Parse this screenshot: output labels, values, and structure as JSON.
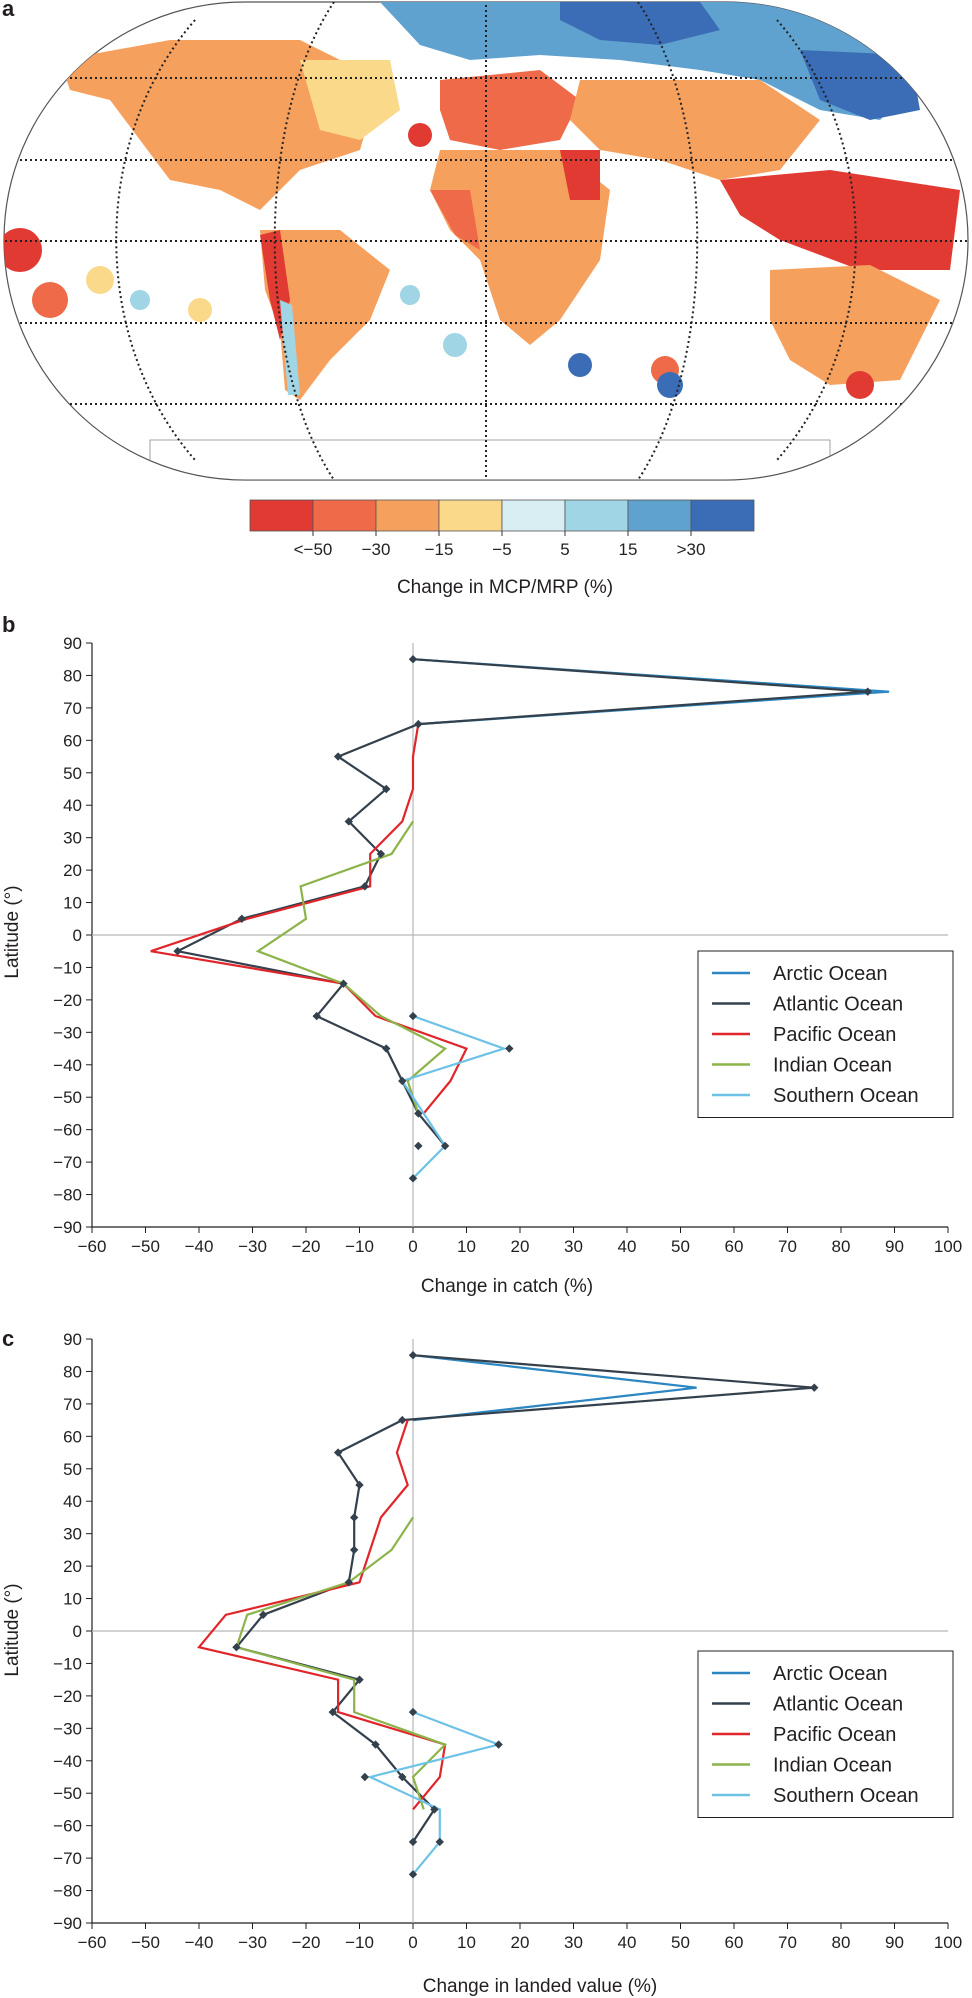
{
  "panels": {
    "a": {
      "label": "a"
    },
    "b": {
      "label": "b"
    },
    "c": {
      "label": "c"
    }
  },
  "colors": {
    "arctic": "#2b86c1",
    "atlantic": "#34414d",
    "pacific": "#e0262b",
    "indian": "#8cb44a",
    "southern": "#6dc2e6",
    "bins": [
      "#e03a33",
      "#ee6a48",
      "#f6a05e",
      "#fbd98a",
      "#d9eef3",
      "#9fd5e4",
      "#5fa2d0",
      "#3a6db5"
    ]
  },
  "map": {
    "colorbar_ticks": [
      "<−50",
      "−30",
      "−15",
      "−5",
      "5",
      "15",
      ">30"
    ],
    "colorbar_title": "Change in MCP/MRP (%)"
  },
  "chart_data": [
    {
      "type": "line",
      "panel": "b",
      "xlabel": "Change in catch (%)",
      "ylabel": "Latitude (°)",
      "xlim": [
        -60,
        100
      ],
      "ylim": [
        -90,
        90
      ],
      "xticks": [
        -60,
        -50,
        -40,
        -30,
        -20,
        -10,
        0,
        10,
        20,
        30,
        40,
        50,
        60,
        70,
        80,
        90,
        100
      ],
      "yticks": [
        90,
        80,
        70,
        60,
        50,
        40,
        30,
        20,
        10,
        0,
        -10,
        -20,
        -30,
        -40,
        -50,
        -60,
        -70,
        -80,
        -90
      ],
      "legend_position": "right",
      "series": [
        {
          "name": "Arctic Ocean",
          "key": "arctic",
          "marker": false,
          "points": [
            [
              0,
              85
            ],
            [
              89,
              75
            ],
            [
              1,
              65
            ]
          ]
        },
        {
          "name": "Atlantic Ocean",
          "key": "atlantic",
          "marker": true,
          "points": [
            [
              0,
              85
            ],
            [
              85,
              75
            ],
            [
              1,
              65
            ],
            [
              -14,
              55
            ],
            [
              -5,
              45
            ],
            [
              -12,
              35
            ],
            [
              -6,
              25
            ],
            [
              -9,
              15
            ],
            [
              -32,
              5
            ],
            [
              -44,
              -5
            ],
            [
              -13,
              -15
            ],
            [
              -18,
              -25
            ],
            [
              -5,
              -35
            ],
            [
              -2,
              -45
            ],
            [
              1,
              -55
            ],
            [
              6,
              -65
            ]
          ]
        },
        {
          "name": "Pacific Ocean",
          "key": "pacific",
          "marker": false,
          "points": [
            [
              1,
              65
            ],
            [
              0,
              55
            ],
            [
              0,
              45
            ],
            [
              -2,
              35
            ],
            [
              -8,
              25
            ],
            [
              -8,
              15
            ],
            [
              -31,
              5
            ],
            [
              -49,
              -5
            ],
            [
              -13,
              -15
            ],
            [
              -7,
              -25
            ],
            [
              10,
              -35
            ],
            [
              7,
              -45
            ],
            [
              2,
              -55
            ]
          ]
        },
        {
          "name": "Indian Ocean",
          "key": "indian",
          "marker": false,
          "points": [
            [
              0,
              35
            ],
            [
              -4,
              25
            ],
            [
              -21,
              15
            ],
            [
              -20,
              5
            ],
            [
              -29,
              -5
            ],
            [
              -13,
              -15
            ],
            [
              -6,
              -25
            ],
            [
              6,
              -35
            ],
            [
              -1,
              -45
            ],
            [
              1,
              -55
            ]
          ]
        },
        {
          "name": "Southern Ocean",
          "key": "southern",
          "marker": false,
          "points": [
            [
              0,
              -25
            ],
            [
              17,
              -35
            ],
            [
              -2,
              -45
            ],
            [
              6,
              -65
            ],
            [
              0,
              -75
            ]
          ]
        },
        {
          "name": "",
          "key": "atlantic",
          "marker": true,
          "line": false,
          "points": [
            [
              0,
              -25
            ],
            [
              18,
              -35
            ],
            [
              1,
              -65
            ],
            [
              0,
              -75
            ]
          ]
        }
      ]
    },
    {
      "type": "line",
      "panel": "c",
      "xlabel": "Change in landed value (%)",
      "ylabel": "Latitude (°)",
      "xlim": [
        -60,
        100
      ],
      "ylim": [
        -90,
        90
      ],
      "xticks": [
        -60,
        -50,
        -40,
        -30,
        -20,
        -10,
        0,
        10,
        20,
        30,
        40,
        50,
        60,
        70,
        80,
        90,
        100
      ],
      "yticks": [
        90,
        80,
        70,
        60,
        50,
        40,
        30,
        20,
        10,
        0,
        -10,
        -20,
        -30,
        -40,
        -50,
        -60,
        -70,
        -80,
        -90
      ],
      "legend_position": "right",
      "series": [
        {
          "name": "Arctic Ocean",
          "key": "arctic",
          "marker": false,
          "points": [
            [
              0,
              85
            ],
            [
              53,
              75
            ],
            [
              0,
              65
            ]
          ]
        },
        {
          "name": "Atlantic Ocean",
          "key": "atlantic",
          "marker": true,
          "points": [
            [
              0,
              85
            ],
            [
              75,
              75
            ],
            [
              -2,
              65
            ],
            [
              -14,
              55
            ],
            [
              -10,
              45
            ],
            [
              -11,
              35
            ],
            [
              -11,
              25
            ],
            [
              -12,
              15
            ],
            [
              -28,
              5
            ],
            [
              -33,
              -5
            ],
            [
              -10,
              -15
            ],
            [
              -15,
              -25
            ],
            [
              -7,
              -35
            ],
            [
              -2,
              -45
            ],
            [
              4,
              -55
            ],
            [
              0,
              -65
            ]
          ]
        },
        {
          "name": "Pacific Ocean",
          "key": "pacific",
          "marker": false,
          "points": [
            [
              -1,
              65
            ],
            [
              -3,
              55
            ],
            [
              -1,
              45
            ],
            [
              -6,
              35
            ],
            [
              -8,
              25
            ],
            [
              -10,
              15
            ],
            [
              -35,
              5
            ],
            [
              -40,
              -5
            ],
            [
              -14,
              -15
            ],
            [
              -14,
              -25
            ],
            [
              6,
              -35
            ],
            [
              5,
              -45
            ],
            [
              0,
              -55
            ]
          ]
        },
        {
          "name": "Indian Ocean",
          "key": "indian",
          "marker": false,
          "points": [
            [
              0,
              35
            ],
            [
              -4,
              25
            ],
            [
              -12,
              15
            ],
            [
              -31,
              5
            ],
            [
              -33,
              -5
            ],
            [
              -11,
              -15
            ],
            [
              -11,
              -25
            ],
            [
              6,
              -35
            ],
            [
              0,
              -45
            ],
            [
              2,
              -55
            ]
          ]
        },
        {
          "name": "Southern Ocean",
          "key": "southern",
          "marker": false,
          "points": [
            [
              0,
              -25
            ],
            [
              16,
              -35
            ],
            [
              -8,
              -45
            ],
            [
              5,
              -55
            ],
            [
              5,
              -65
            ],
            [
              0,
              -75
            ]
          ]
        },
        {
          "name": "",
          "key": "atlantic",
          "marker": true,
          "line": false,
          "points": [
            [
              0,
              -25
            ],
            [
              16,
              -35
            ],
            [
              -9,
              -45
            ],
            [
              5,
              -65
            ],
            [
              0,
              -75
            ]
          ]
        }
      ]
    }
  ]
}
